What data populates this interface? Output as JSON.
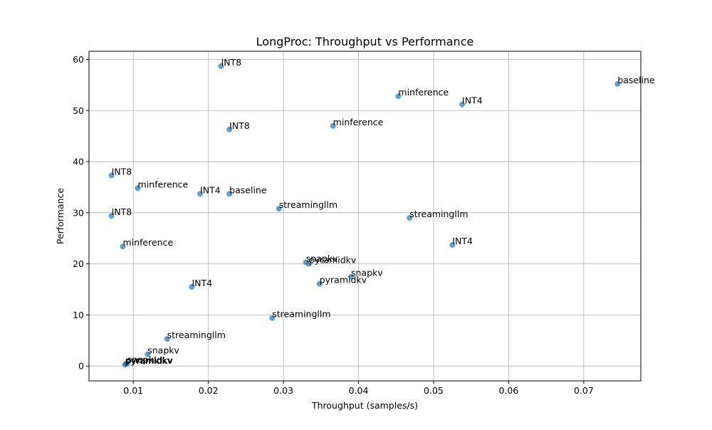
{
  "chart_data": {
    "type": "scatter",
    "title": "LongProc: Throughput vs Performance",
    "xlabel": "Throughput (samples/s)",
    "ylabel": "Performance",
    "xlim": [
      0.0041,
      0.0776
    ],
    "ylim": [
      -2.9,
      61.6
    ],
    "xticks": [
      0.01,
      0.02,
      0.03,
      0.04,
      0.05,
      0.06,
      0.07
    ],
    "xtick_labels": [
      "0.01",
      "0.02",
      "0.03",
      "0.04",
      "0.05",
      "0.06",
      "0.07"
    ],
    "yticks": [
      0,
      10,
      20,
      30,
      40,
      50,
      60
    ],
    "ytick_labels": [
      "0",
      "10",
      "20",
      "30",
      "40",
      "50",
      "60"
    ],
    "grid": true,
    "marker_color": "#1f77b4",
    "points": [
      {
        "x": 0.0745,
        "y": 55.2,
        "label": "baseline"
      },
      {
        "x": 0.0217,
        "y": 58.7,
        "label": "INT8"
      },
      {
        "x": 0.0453,
        "y": 52.8,
        "label": "minference"
      },
      {
        "x": 0.0538,
        "y": 51.2,
        "label": "INT4"
      },
      {
        "x": 0.0228,
        "y": 46.3,
        "label": "INT8"
      },
      {
        "x": 0.0366,
        "y": 47.0,
        "label": "minference"
      },
      {
        "x": 0.0071,
        "y": 37.3,
        "label": "INT8"
      },
      {
        "x": 0.0106,
        "y": 34.8,
        "label": "minference"
      },
      {
        "x": 0.0189,
        "y": 33.7,
        "label": "INT4"
      },
      {
        "x": 0.0228,
        "y": 33.7,
        "label": "baseline"
      },
      {
        "x": 0.0294,
        "y": 30.8,
        "label": "streamingllm"
      },
      {
        "x": 0.0468,
        "y": 29.0,
        "label": "streamingllm"
      },
      {
        "x": 0.0071,
        "y": 29.4,
        "label": "INT8"
      },
      {
        "x": 0.0086,
        "y": 23.4,
        "label": "minference"
      },
      {
        "x": 0.0525,
        "y": 23.7,
        "label": "INT4"
      },
      {
        "x": 0.033,
        "y": 20.3,
        "label": "snapkv"
      },
      {
        "x": 0.0334,
        "y": 20.0,
        "label": "pyramidkv"
      },
      {
        "x": 0.039,
        "y": 17.5,
        "label": "snapkv"
      },
      {
        "x": 0.0348,
        "y": 16.1,
        "label": "pyramidkv"
      },
      {
        "x": 0.0178,
        "y": 15.5,
        "label": "INT4"
      },
      {
        "x": 0.0285,
        "y": 9.4,
        "label": "streamingllm"
      },
      {
        "x": 0.0145,
        "y": 5.3,
        "label": "streamingllm"
      },
      {
        "x": 0.0119,
        "y": 2.3,
        "label": "snapkv"
      },
      {
        "x": 0.009,
        "y": 0.4,
        "label": "pyramidkv"
      },
      {
        "x": 0.0092,
        "y": 0.5,
        "label": "snapkv"
      },
      {
        "x": 0.0089,
        "y": 0.3,
        "label": "pyramidkv"
      }
    ]
  }
}
